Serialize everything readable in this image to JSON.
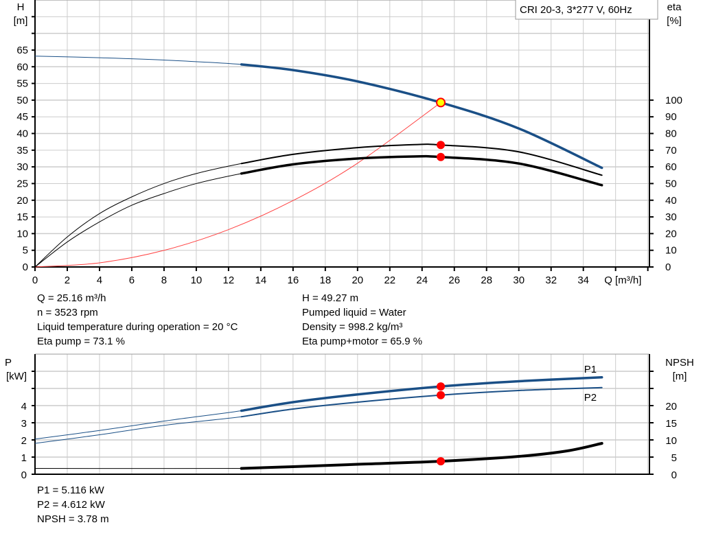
{
  "title_box": "CRI 20-3, 3*277 V, 60Hz",
  "colors": {
    "head": "#1a4f86",
    "efficiency": "#000000",
    "system_curve": "#ff4040",
    "duty_point": "#ff0000",
    "duty_point_head_fill": "#ffff00",
    "grid": "#cccccc",
    "power": "#1a4f86",
    "npsh": "#000000"
  },
  "readout_left": [
    "Q = 25.16 m³/h",
    "n = 3523 rpm",
    "Liquid temperature during operation = 20 °C",
    "Eta pump = 73.1 %"
  ],
  "readout_right": [
    "H = 49.27 m",
    "Pumped liquid = Water",
    "Density = 998.2 kg/m³",
    "Eta pump+motor = 65.9 %"
  ],
  "readout_bottom": [
    "P1 = 5.116 kW",
    "P2 = 4.612 kW",
    "NPSH = 3.78 m"
  ],
  "chart_data": [
    {
      "type": "line",
      "xlabel": "Q [m³/h]",
      "ylabel": "H\n[m]",
      "ylabel_parts": [
        "H",
        "[m]"
      ],
      "y2label_parts": [
        "eta",
        "[%]"
      ],
      "xlim": [
        0,
        38
      ],
      "ylim": [
        0,
        80
      ],
      "y2lim": [
        0,
        160
      ],
      "x_ticks": [
        0,
        2,
        4,
        6,
        8,
        10,
        12,
        14,
        16,
        18,
        20,
        22,
        24,
        26,
        28,
        30,
        32,
        34
      ],
      "y_ticks": [
        0,
        5,
        10,
        15,
        20,
        25,
        30,
        35,
        40,
        45,
        50,
        55,
        60,
        65
      ],
      "y2_ticks": [
        0,
        10,
        20,
        30,
        40,
        50,
        60,
        70,
        80,
        90,
        100
      ],
      "grid": true,
      "operating_range_start_q": 12.8,
      "series": [
        {
          "id": "head",
          "axis": "left",
          "points": [
            [
              0,
              63.2
            ],
            [
              4,
              62.7
            ],
            [
              8,
              62.0
            ],
            [
              12.8,
              60.7
            ],
            [
              16,
              59.0
            ],
            [
              20,
              55.6
            ],
            [
              25.16,
              49.27
            ],
            [
              30,
              41.5
            ],
            [
              35.15,
              29.7
            ]
          ]
        },
        {
          "id": "eta_pump",
          "axis": "right",
          "points": [
            [
              0,
              0
            ],
            [
              2,
              18
            ],
            [
              4,
              32
            ],
            [
              6,
              42
            ],
            [
              8,
              50
            ],
            [
              10,
              56
            ],
            [
              12.8,
              62
            ],
            [
              16,
              67.5
            ],
            [
              20,
              71.5
            ],
            [
              23.5,
              73.3
            ],
            [
              25.16,
              73.1
            ],
            [
              30,
              69
            ],
            [
              35.15,
              55
            ]
          ]
        },
        {
          "id": "eta_pump_motor",
          "axis": "right",
          "points": [
            [
              0,
              0
            ],
            [
              2,
              15
            ],
            [
              4,
              27
            ],
            [
              6,
              37
            ],
            [
              8,
              44
            ],
            [
              10,
              50
            ],
            [
              12.8,
              56
            ],
            [
              16,
              61.5
            ],
            [
              20,
              65
            ],
            [
              23.5,
              66.2
            ],
            [
              25.16,
              65.9
            ],
            [
              30,
              62
            ],
            [
              35.15,
              49
            ]
          ]
        },
        {
          "id": "system_curve",
          "axis": "left",
          "points": [
            [
              0,
              0
            ],
            [
              4,
              1.24
            ],
            [
              8,
              4.98
            ],
            [
              12,
              11.2
            ],
            [
              16,
              19.9
            ],
            [
              20,
              31.1
            ],
            [
              25.16,
              49.27
            ]
          ]
        }
      ],
      "duty_point": {
        "q": 25.16,
        "h": 49.27,
        "eta_pump": 73.1,
        "eta_pump_motor": 65.9
      }
    },
    {
      "type": "line",
      "ylabel_parts": [
        "P",
        "[kW]"
      ],
      "y2label_parts": [
        "NPSH",
        "[m]"
      ],
      "xlim": [
        0,
        38
      ],
      "ylim": [
        0,
        7
      ],
      "y2lim": [
        0,
        35
      ],
      "y_ticks": [
        0,
        1,
        2,
        3,
        4
      ],
      "y_ticks_unlabeled": [
        5,
        6
      ],
      "y2_ticks": [
        0,
        5,
        10,
        15,
        20
      ],
      "grid": true,
      "series": [
        {
          "id": "P1",
          "name": "P1",
          "axis": "left",
          "points": [
            [
              0,
              2.05
            ],
            [
              4,
              2.55
            ],
            [
              8,
              3.1
            ],
            [
              12.8,
              3.7
            ],
            [
              16,
              4.2
            ],
            [
              20,
              4.65
            ],
            [
              25.16,
              5.116
            ],
            [
              30,
              5.42
            ],
            [
              35.15,
              5.65
            ]
          ]
        },
        {
          "id": "P2",
          "name": "P2",
          "axis": "left",
          "points": [
            [
              0,
              1.8
            ],
            [
              4,
              2.3
            ],
            [
              8,
              2.85
            ],
            [
              12.8,
              3.35
            ],
            [
              16,
              3.8
            ],
            [
              20,
              4.2
            ],
            [
              25.16,
              4.612
            ],
            [
              30,
              4.88
            ],
            [
              35.15,
              5.05
            ]
          ]
        },
        {
          "id": "NPSH",
          "axis": "right",
          "points": [
            [
              0,
              1.7
            ],
            [
              12.8,
              1.7
            ],
            [
              16,
              2.2
            ],
            [
              20,
              2.9
            ],
            [
              25.16,
              3.78
            ],
            [
              30,
              5.2
            ],
            [
              33,
              6.8
            ],
            [
              35.15,
              9.0
            ]
          ]
        }
      ],
      "duty_point": {
        "q": 25.16,
        "P1": 5.116,
        "P2": 4.612,
        "NPSH": 3.78
      }
    }
  ]
}
